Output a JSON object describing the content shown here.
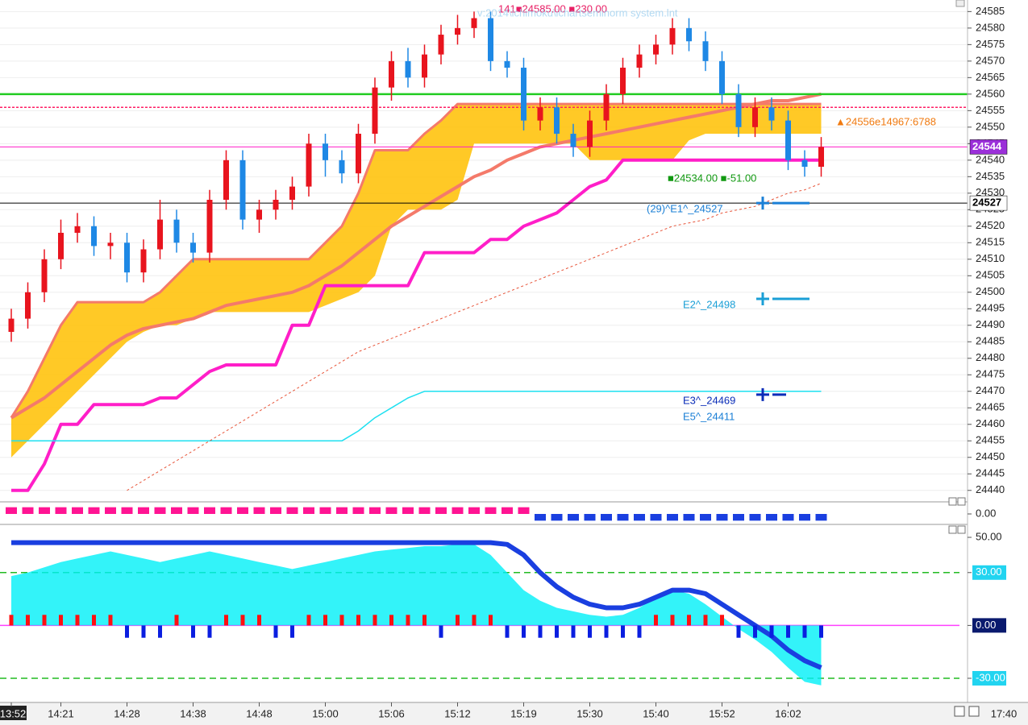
{
  "chart_data": [
    {
      "type": "candlestick",
      "title": "141■24585.00 ■230.00",
      "subtitle": "v:2014\\ichimoku\\ichartseminorm system.lnt",
      "categories": [
        "13:52",
        null,
        null,
        "14:21",
        null,
        null,
        null,
        "14:28",
        null,
        null,
        null,
        "14:38",
        null,
        null,
        null,
        "14:48",
        null,
        null,
        null,
        "15:00",
        null,
        null,
        null,
        "15:06",
        null,
        null,
        null,
        "15:12",
        null,
        null,
        null,
        "15:19",
        null,
        null,
        null,
        "15:30",
        null,
        null,
        null,
        "15:40",
        null,
        null,
        null,
        "15:52",
        null,
        null,
        null,
        "16:02",
        null,
        null
      ],
      "end_time": "17:40",
      "open": [
        24488,
        24492,
        24500,
        24510,
        24518,
        24520,
        24514,
        24515,
        24506,
        24513,
        24522,
        24515,
        24512,
        24528,
        24540,
        24522,
        24525,
        24528,
        24532,
        24545,
        24540,
        24536,
        24548,
        24562,
        24570,
        24565,
        24572,
        24578,
        24580,
        24583,
        24570,
        24568,
        24552,
        24556,
        24548,
        24544,
        24552,
        24560,
        24568,
        24572,
        24575,
        24580,
        24576,
        24570,
        24560,
        24550,
        24556,
        24552,
        24540,
        24538
      ],
      "high": [
        24495,
        24503,
        24513,
        24522,
        24524,
        24523,
        24518,
        24518,
        24516,
        24528,
        24525,
        24518,
        24531,
        24543,
        24543,
        24528,
        24531,
        24535,
        24548,
        24548,
        24543,
        24551,
        24565,
        24573,
        24574,
        24575,
        24581,
        24584,
        24585,
        24585,
        24573,
        24571,
        24559,
        24559,
        24551,
        24555,
        24563,
        24571,
        24575,
        24578,
        24583,
        24583,
        24579,
        24573,
        24563,
        24559,
        24559,
        24555,
        24543,
        24547
      ],
      "low": [
        24485,
        24489,
        24497,
        24507,
        24515,
        24511,
        24510,
        24503,
        24503,
        24510,
        24512,
        24509,
        24509,
        24525,
        24519,
        24518,
        24522,
        24525,
        24529,
        24535,
        24533,
        24533,
        24545,
        24558,
        24562,
        24562,
        24569,
        24575,
        24577,
        24567,
        24565,
        24549,
        24549,
        24545,
        24541,
        24541,
        24549,
        24557,
        24565,
        24569,
        24572,
        24573,
        24567,
        24557,
        24547,
        24547,
        24549,
        24537,
        24535,
        24535
      ],
      "close": [
        24492,
        24500,
        24510,
        24518,
        24520,
        24514,
        24515,
        24506,
        24513,
        24522,
        24515,
        24512,
        24528,
        24540,
        24522,
        24525,
        24528,
        24532,
        24545,
        24540,
        24536,
        24548,
        24562,
        24570,
        24565,
        24572,
        24578,
        24580,
        24583,
        24570,
        24568,
        24552,
        24556,
        24548,
        24544,
        24552,
        24560,
        24568,
        24572,
        24575,
        24580,
        24576,
        24570,
        24560,
        24550,
        24556,
        24552,
        24540,
        24538,
        24544
      ],
      "color_up": "#e8141e",
      "color_down": "#1e88e5",
      "cloud_upper": [
        24462,
        24470,
        24480,
        24490,
        24497,
        24497,
        24497,
        24497,
        24497,
        24500,
        24505,
        24510,
        24510,
        24510,
        24510,
        24510,
        24510,
        24510,
        24510,
        24515,
        24520,
        24530,
        24543,
        24543,
        24543,
        24548,
        24552,
        24557,
        24557,
        24557,
        24557,
        24557,
        24557,
        24557,
        24557,
        24557,
        24557,
        24557,
        24557,
        24557,
        24557,
        24557,
        24557,
        24557,
        24557,
        24557,
        24557,
        24557,
        24557,
        24557
      ],
      "cloud_lower": [
        24450,
        24455,
        24460,
        24465,
        24470,
        24475,
        24480,
        24485,
        24488,
        24490,
        24490,
        24492,
        24494,
        24494,
        24494,
        24494,
        24494,
        24494,
        24494,
        24496,
        24498,
        24500,
        24505,
        24520,
        24525,
        24525,
        24525,
        24528,
        24545,
        24545,
        24545,
        24545,
        24545,
        24545,
        24545,
        24540,
        24540,
        24540,
        24540,
        24540,
        24540,
        24546,
        24548,
        24548,
        24548,
        24548,
        24548,
        24548,
        24548,
        24548
      ],
      "cloud_color": "#ffc000",
      "series": [
        {
          "color": "#f47a6a",
          "width": 4,
          "values": [
            24462,
            24465,
            24468,
            24472,
            24476,
            24480,
            24484,
            24487,
            24489,
            24490,
            24491,
            24492,
            24494,
            24496,
            24497,
            24498,
            24499,
            24500,
            24502,
            24505,
            24508,
            24512,
            24516,
            24520,
            24523,
            24526,
            24529,
            24532,
            24535,
            24537,
            24540,
            24542,
            24544,
            24545,
            24546,
            24547,
            24548,
            24549,
            24550,
            24551,
            24552,
            24553,
            24554,
            24555,
            24556,
            24557,
            24558,
            24558,
            24559,
            24560
          ]
        },
        {
          "color": "#ff1ec8",
          "width": 4,
          "values": [
            24440,
            24440,
            24448,
            24460,
            24460,
            24466,
            24466,
            24466,
            24466,
            24468,
            24468,
            24472,
            24476,
            24478,
            24478,
            24478,
            24478,
            24490,
            24490,
            24502,
            24502,
            24502,
            24502,
            24502,
            24502,
            24512,
            24512,
            24512,
            24512,
            24516,
            24516,
            24520,
            24522,
            24524,
            24528,
            24532,
            24534,
            24540,
            24540,
            24540,
            24540,
            24540,
            24540,
            24540,
            24540,
            24540,
            24540,
            24540,
            24540,
            24540
          ]
        },
        {
          "color": "#1ee0f0",
          "width": 1.5,
          "values": [
            24455,
            24455,
            24455,
            24455,
            24455,
            24455,
            24455,
            24455,
            24455,
            24455,
            24455,
            24455,
            24455,
            24455,
            24455,
            24455,
            24455,
            24455,
            24455,
            24455,
            24455,
            24458,
            24462,
            24465,
            24468,
            24470,
            24470,
            24470,
            24470,
            24470,
            24470,
            24470,
            24470,
            24470,
            24470,
            24470,
            24470,
            24470,
            24470,
            24470,
            24470,
            24470,
            24470,
            24470,
            24470,
            24470,
            24470,
            24470,
            24470,
            24470
          ]
        },
        {
          "color": "#e8553a",
          "width": 1,
          "dash": true,
          "values": [
            null,
            null,
            null,
            null,
            null,
            null,
            null,
            24440,
            24443,
            24446,
            24449,
            24452,
            24455,
            24458,
            24461,
            24464,
            24467,
            24470,
            24473,
            24476,
            24479,
            24482,
            24484,
            24486,
            24488,
            24490,
            24492,
            24494,
            24496,
            24498,
            24500,
            24502,
            24504,
            24506,
            24508,
            24510,
            24512,
            24514,
            24516,
            24518,
            24520,
            24521,
            24522,
            24524,
            24525,
            24526,
            24528,
            24530,
            24531,
            24533
          ]
        }
      ],
      "levels": [
        {
          "value": 24544,
          "color": "#ff1ec8",
          "tag": true,
          "tag_bg": "#9b30d9",
          "tag_fg": "#ffffff"
        },
        {
          "value": 24527,
          "color": "#000000",
          "tag": true,
          "tag_bg": "#ffffff",
          "tag_fg": "#000000"
        },
        {
          "value": 24560,
          "color": "#22cc22"
        },
        {
          "value": 24556,
          "color": "#ff1e64",
          "dash": true
        }
      ],
      "annotations": [
        {
          "label": "(29)^E1^_24527",
          "value": 24527,
          "color": "#1a7fd6"
        },
        {
          "label": "E2^_24498",
          "value": 24498,
          "color": "#1a9fd6"
        },
        {
          "label": "E3^_24469",
          "value": 24469,
          "color": "#0a2db8"
        }
      ],
      "note_e5": "E5^_24411",
      "note_orange": "▲24556e14967:6788",
      "note_green": "■24534.00 ■-51.00",
      "ylim": [
        24437.5,
        24588.5
      ],
      "yticks": [
        24440,
        24445,
        24450,
        24455,
        24460,
        24465,
        24470,
        24475,
        24480,
        24485,
        24490,
        24495,
        24500,
        24505,
        24510,
        24515,
        24520,
        24525,
        24530,
        24535,
        24540,
        24545,
        24550,
        24555,
        24560,
        24565,
        24570,
        24575,
        24580,
        24585
      ],
      "grid": true
    },
    {
      "type": "bar",
      "values": [
        1,
        1,
        1,
        1,
        1,
        1,
        1,
        1,
        1,
        1,
        1,
        1,
        1,
        1,
        1,
        1,
        1,
        1,
        1,
        1,
        1,
        1,
        1,
        1,
        1,
        1,
        1,
        1,
        1,
        1,
        1,
        1,
        -1,
        -1,
        -1,
        -1,
        -1,
        -1,
        -1,
        -1,
        -1,
        -1,
        -1,
        -1,
        -1,
        -1,
        -1,
        -1,
        -1,
        -1
      ],
      "color_up": "#ff1493",
      "color_down": "#1a3fe0",
      "ylim": [
        -1.2,
        1.2
      ],
      "yticks": [
        {
          "value": 0,
          "label": "0.00"
        }
      ]
    },
    {
      "type": "bar",
      "values": [
        6,
        6,
        6,
        6,
        6,
        6,
        6,
        -7,
        -7,
        -7,
        6,
        -7,
        -7,
        6,
        6,
        6,
        -7,
        -7,
        6,
        6,
        6,
        6,
        6,
        6,
        6,
        6,
        -7,
        6,
        6,
        6,
        -7,
        -7,
        -7,
        -7,
        -7,
        -7,
        -7,
        -7,
        -7,
        6,
        6,
        6,
        6,
        6,
        -7,
        -7,
        -7,
        -7,
        -7,
        -7
      ],
      "color_up": "#ff1010",
      "color_down": "#0a1ee0",
      "series": [
        {
          "color": "#00f0f8",
          "fill": true,
          "width": 1,
          "values": [
            28,
            30,
            33,
            36,
            38,
            40,
            42,
            40,
            38,
            36,
            38,
            40,
            42,
            40,
            38,
            36,
            34,
            32,
            34,
            36,
            38,
            40,
            42,
            43,
            44,
            45,
            45,
            46,
            46,
            40,
            30,
            20,
            14,
            10,
            8,
            6,
            5,
            6,
            10,
            16,
            20,
            18,
            12,
            5,
            -2,
            -8,
            -15,
            -24,
            -32,
            -34
          ]
        },
        {
          "color": "#1a3fe0",
          "width": 6,
          "values": [
            47,
            47,
            47,
            47,
            47,
            47,
            47,
            47,
            47,
            47,
            47,
            47,
            47,
            47,
            47,
            47,
            47,
            47,
            47,
            47,
            47,
            47,
            47,
            47,
            47,
            47,
            47,
            47,
            47,
            47,
            46,
            40,
            30,
            22,
            16,
            12,
            10,
            10,
            12,
            16,
            20,
            20,
            18,
            12,
            6,
            0,
            -6,
            -14,
            -20,
            -24
          ]
        }
      ],
      "ylim": [
        -42.8,
        55.5
      ],
      "yticks": [
        {
          "value": 50,
          "label": "50.00"
        },
        {
          "value": 30,
          "label": "30.00",
          "bg": "#22d4f0",
          "fg": "#ffffff",
          "dash": "#22bb22"
        },
        {
          "value": 0,
          "label": "0.00",
          "bg": "#0a1a6e",
          "fg": "#ffffff",
          "dash": "#ff40ff"
        },
        {
          "value": -30,
          "label": "-30.00",
          "bg": "#22d4f0",
          "fg": "#ffffff",
          "dash": "#22bb22"
        }
      ]
    }
  ]
}
